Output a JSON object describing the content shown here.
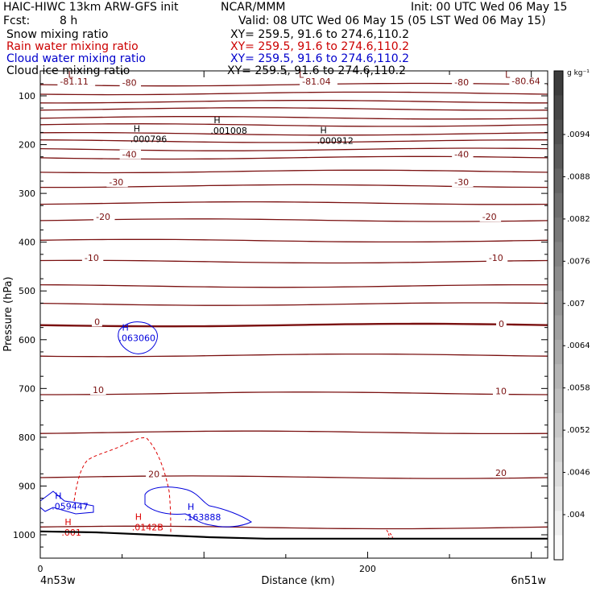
{
  "header": {
    "left_line1": "HAIC-HIWC 13km ARW-GFS init",
    "center_line1": "NCAR/MMM",
    "init": "Init: 00 UTC Wed 06 May 15",
    "fcst_label": "Fcst:",
    "fcst_value": "8 h",
    "valid": "Valid: 08 UTC Wed 06 May 15 (05 LST Wed 06 May 15)",
    "fields": [
      {
        "name": "Snow mixing ratio",
        "xy": "XY= 259.5, 91.6 to 274.6,110.2",
        "color": "#000000"
      },
      {
        "name": "Rain water mixing ratio",
        "xy": "XY= 259.5, 91.6 to 274.6,110.2",
        "color": "#cc0000"
      },
      {
        "name": "Cloud water mixing ratio",
        "xy": "XY= 259.5, 91.6 to 274.6,110.2",
        "color": "#0000cc"
      },
      {
        "name": "Cloud ice mixing ratio",
        "xy": "XY= 259.5, 91.6 to 274.6,110.2",
        "color": "#000000"
      }
    ]
  },
  "chart_data": {
    "type": "cross-section",
    "ylabel": "Pressure (hPa)",
    "xlabel": "Distance (km)",
    "y_ticks": [
      100,
      200,
      300,
      400,
      500,
      600,
      700,
      800,
      900,
      1000
    ],
    "ylim": [
      1050,
      50
    ],
    "x_ticks": [
      0,
      200
    ],
    "xlim": [
      0,
      310
    ],
    "x_end_left": "4n53w",
    "x_end_right": "6n51w",
    "colorbar": {
      "unit": "g kg⁻¹",
      "labels": [
        ".0094",
        ".0088",
        ".0082",
        ".0076",
        ".007",
        ".0064",
        ".0058",
        ".0052",
        ".0046",
        ".004"
      ]
    },
    "temperature_contours": [
      {
        "p": 77,
        "label": "-80"
      },
      {
        "p": 95
      },
      {
        "p": 112
      },
      {
        "p": 127
      },
      {
        "p": 145
      },
      {
        "p": 160
      },
      {
        "p": 178
      },
      {
        "p": 193
      },
      {
        "p": 210
      },
      {
        "p": 227,
        "label": "-40"
      },
      {
        "p": 255
      },
      {
        "p": 285,
        "label": "-30"
      },
      {
        "p": 320
      },
      {
        "p": 355,
        "label": "-20"
      },
      {
        "p": 397
      },
      {
        "p": 440,
        "label": "-10"
      },
      {
        "p": 490
      },
      {
        "p": 527
      },
      {
        "p": 570,
        "label": "0",
        "bold": true
      },
      {
        "p": 632
      },
      {
        "p": 710,
        "label": "10"
      },
      {
        "p": 790
      },
      {
        "p": 882,
        "label": "20"
      },
      {
        "p": 985
      }
    ],
    "label_left": [
      {
        "label": "-81.11",
        "x": 12,
        "p": 75
      },
      {
        "label": "-80",
        "x": 50,
        "p": 78
      },
      {
        "label": "-40",
        "x": 50,
        "p": 225
      },
      {
        "label": "-30",
        "x": 42,
        "p": 282
      },
      {
        "label": "-20",
        "x": 34,
        "p": 353
      },
      {
        "label": "-10",
        "x": 27,
        "p": 437
      },
      {
        "label": "0",
        "x": 33,
        "p": 568
      },
      {
        "label": "10",
        "x": 32,
        "p": 708
      },
      {
        "label": "20",
        "x": 66,
        "p": 880
      }
    ],
    "label_right": [
      {
        "label": "-81.04",
        "x": 160,
        "p": 75
      },
      {
        "label": "-80",
        "x": 253,
        "p": 77
      },
      {
        "label": "-80.64",
        "x": 288,
        "p": 74
      },
      {
        "label": "-40",
        "x": 253,
        "p": 225
      },
      {
        "label": "-30",
        "x": 253,
        "p": 282
      },
      {
        "label": "-20",
        "x": 270,
        "p": 353
      },
      {
        "label": "-10",
        "x": 274,
        "p": 437
      },
      {
        "label": "0",
        "x": 280,
        "p": 572
      },
      {
        "label": "10",
        "x": 278,
        "p": 710
      },
      {
        "label": "20",
        "x": 278,
        "p": 878
      }
    ],
    "lows": [
      {
        "label": "L",
        "x": 17,
        "p": 63
      },
      {
        "label": "L",
        "x": 158,
        "p": 63
      },
      {
        "label": "L",
        "x": 284,
        "p": 63
      }
    ],
    "snow_highs": [
      {
        "label": "H",
        "value": ".000796",
        "x": 55,
        "p": 190
      },
      {
        "label": "H",
        "value": ".001008",
        "x": 104,
        "p": 173
      },
      {
        "label": "H",
        "value": ".000912",
        "x": 169,
        "p": 193
      }
    ],
    "cloud_water_highs": [
      {
        "label": "H",
        "value": ".063060",
        "x": 48,
        "p": 598
      },
      {
        "label": "H",
        "value": ".059447",
        "x": 7,
        "p": 943
      },
      {
        "label": "H",
        "value": ".163888",
        "x": 88,
        "p": 965
      }
    ],
    "rain_highs": [
      {
        "label": "H",
        "value": ".0142B",
        "x": 56,
        "p": 986
      },
      {
        "label": "H",
        "value": ".001",
        "x": 13,
        "p": 997
      }
    ],
    "terrain_hpa": [
      993,
      995,
      1000,
      1005,
      1008,
      1008,
      1008,
      1008,
      1008,
      1008
    ]
  }
}
